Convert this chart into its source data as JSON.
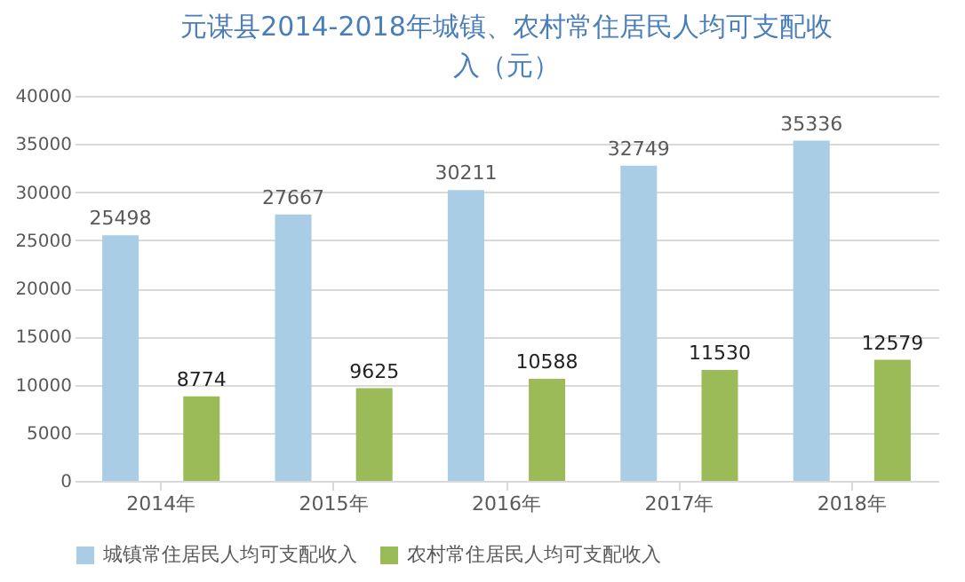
{
  "chart_data": {
    "type": "bar",
    "title": "元谋县2014-2018年城镇、农村常住居民人均可支配收入（元）",
    "categories": [
      "2014年",
      "2015年",
      "2016年",
      "2017年",
      "2018年"
    ],
    "series": [
      {
        "name": "城镇常住居民人均可支配收入",
        "color": "#a8cde4",
        "values": [
          25498,
          27667,
          30211,
          32749,
          35336
        ]
      },
      {
        "name": "农村常住居民人均可支配收入",
        "color": "#9bbb59",
        "values": [
          8774,
          9625,
          10588,
          11530,
          12579
        ]
      }
    ],
    "ylim": [
      0,
      40000
    ],
    "yticks": [
      0,
      5000,
      10000,
      15000,
      20000,
      25000,
      30000,
      35000,
      40000
    ],
    "grid": "y",
    "legend": "bottom",
    "data_labels": true
  }
}
